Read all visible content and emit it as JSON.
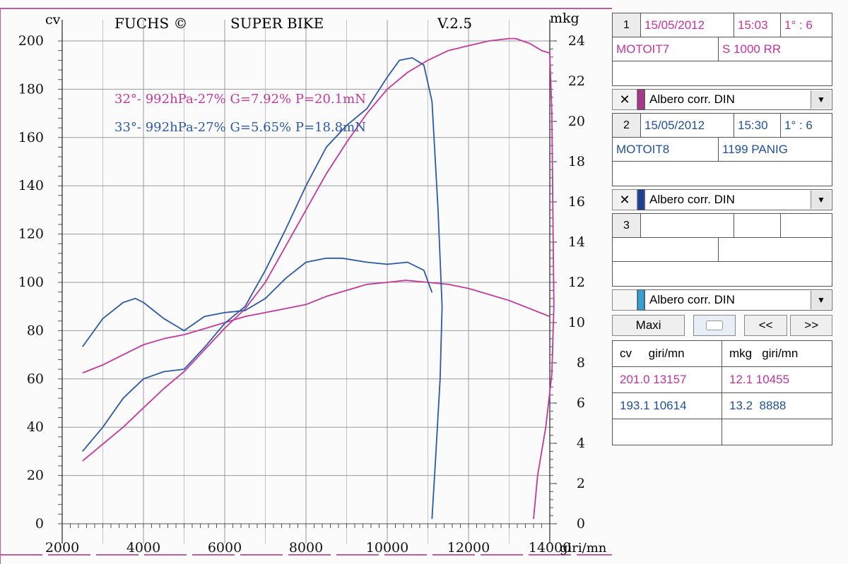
{
  "header": {
    "left": "FUCHS ©",
    "center": "SUPER BIKE",
    "version": "V.2.5",
    "left_unit": "cv",
    "right_unit": "mkg",
    "x_unit": "giri/mn"
  },
  "legend": [
    {
      "text": "32°- 992hPa-27% G=7.92% P=20.1mN",
      "color": "#c4389e"
    },
    {
      "text": "33°- 992hPa-27% G=5.65% P=18.8mN",
      "color": "#2c5aa8"
    }
  ],
  "chart_data": {
    "type": "line",
    "xlabel": "giri/mn",
    "ylabel": "cv",
    "y2label": "mkg",
    "xlim": [
      2000,
      14000
    ],
    "ylim": [
      0,
      200
    ],
    "y2lim": [
      0,
      24
    ],
    "x_ticks": [
      "2000",
      "4000",
      "6000",
      "8000",
      "10000",
      "12000",
      "14000"
    ],
    "y_ticks": [
      "0",
      "20",
      "40",
      "60",
      "80",
      "100",
      "120",
      "140",
      "160",
      "180",
      "200"
    ],
    "y2_ticks": [
      "0",
      "2",
      "4",
      "6",
      "8",
      "10",
      "12",
      "14",
      "16",
      "18",
      "20",
      "22",
      "24"
    ],
    "grid": true,
    "series": [
      {
        "name": "Power 1",
        "color": "#c4389e",
        "axis": "left",
        "x": [
          2500,
          3000,
          3500,
          4000,
          4500,
          5000,
          5500,
          6000,
          6500,
          7000,
          7500,
          8000,
          8500,
          9000,
          9500,
          10000,
          10500,
          11000,
          11500,
          12000,
          12500,
          13000,
          13157,
          13500,
          13800,
          14000,
          14050,
          14100,
          14050,
          13900,
          13700,
          13600
        ],
        "y": [
          26,
          33,
          40,
          48,
          56,
          63,
          72,
          81,
          89,
          100,
          115,
          130,
          145,
          158,
          170,
          180,
          187,
          192,
          196,
          198,
          200,
          201,
          201,
          199,
          196,
          195,
          170,
          90,
          62,
          40,
          20,
          2
        ]
      },
      {
        "name": "Torque 1",
        "color": "#c4389e",
        "axis": "right",
        "x": [
          2500,
          3000,
          3500,
          4000,
          4500,
          5000,
          5500,
          6000,
          6500,
          7000,
          7500,
          8000,
          8500,
          9000,
          9500,
          10000,
          10455,
          11000,
          11500,
          12000,
          12500,
          13000,
          13500,
          14000
        ],
        "y": [
          7.5,
          7.9,
          8.4,
          8.9,
          9.2,
          9.4,
          9.7,
          10.0,
          10.3,
          10.5,
          10.7,
          10.9,
          11.3,
          11.6,
          11.9,
          12.0,
          12.1,
          12.0,
          11.9,
          11.7,
          11.4,
          11.1,
          10.7,
          10.3
        ]
      },
      {
        "name": "Power 2",
        "color": "#2c5aa8",
        "axis": "left",
        "x": [
          2500,
          3000,
          3500,
          4000,
          4500,
          5000,
          5500,
          6000,
          6500,
          7000,
          7500,
          8000,
          8500,
          9000,
          9500,
          10000,
          10300,
          10614,
          10900,
          11100,
          11250,
          11350,
          11300,
          11200,
          11100
        ],
        "y": [
          30,
          40,
          52,
          60,
          63,
          64,
          73,
          83,
          90,
          105,
          122,
          140,
          156,
          165,
          172,
          185,
          192,
          193,
          190,
          175,
          130,
          90,
          60,
          30,
          2
        ]
      },
      {
        "name": "Torque 2",
        "color": "#2c5aa8",
        "axis": "right",
        "x": [
          2500,
          3000,
          3500,
          3800,
          4000,
          4500,
          5000,
          5500,
          6000,
          6500,
          7000,
          7500,
          8000,
          8500,
          8888,
          9500,
          10000,
          10500,
          10900,
          11100
        ],
        "y": [
          8.8,
          10.2,
          11.0,
          11.2,
          11.0,
          10.2,
          9.6,
          10.3,
          10.5,
          10.6,
          11.2,
          12.2,
          13.0,
          13.2,
          13.2,
          13.0,
          12.9,
          13.0,
          12.6,
          11.5
        ]
      }
    ]
  },
  "panel": {
    "run1": {
      "num": "1",
      "date": "15/05/2012",
      "time": "15:03",
      "gear": "1° : 6",
      "code": "MOTOIT7",
      "model": "S 1000 RR"
    },
    "sel1": {
      "x": "✕",
      "label": "Albero corr. DIN",
      "swatch": "#b2338f"
    },
    "run2": {
      "num": "2",
      "date": "15/05/2012",
      "time": "15:30",
      "gear": "1° : 6",
      "code": "MOTOIT8",
      "model": "1199 PANIG"
    },
    "sel2": {
      "x": "✕",
      "label": "Albero corr. DIN",
      "swatch": "#1d3e9c"
    },
    "run3": {
      "num": "3"
    },
    "sel3": {
      "label": "Albero corr. DIN",
      "swatch": "#2fa3dc"
    },
    "buttons": {
      "maxi": "Maxi",
      "prev": "<<",
      "next": ">>"
    },
    "table": {
      "h1": "cv     giri/mn",
      "h2": "mkg   giri/mn",
      "r1c1": "201.0 13157",
      "r1c2": "12.1 10455",
      "r2c1": "193.1 10614",
      "r2c2": "13.2  8888"
    },
    "colors": {
      "pink": "#c2339f",
      "blue": "#1e4f9f"
    }
  }
}
